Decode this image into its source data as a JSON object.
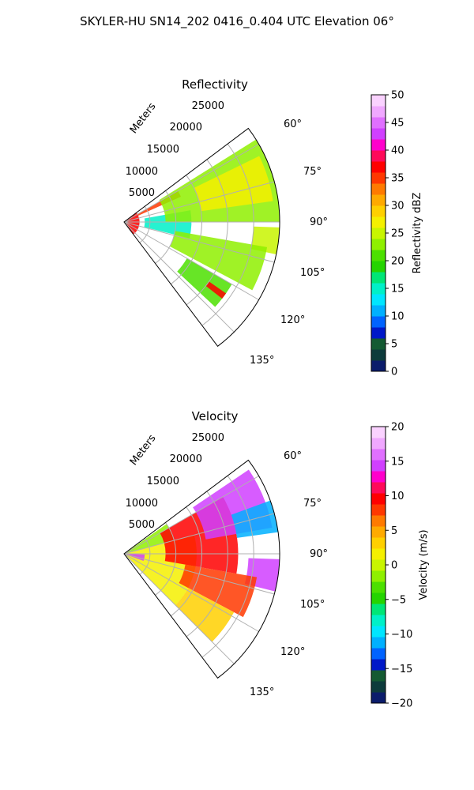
{
  "suptitle": "SKYLER-HU  SN14_202  0416_0.404 UTC Elevation 06°",
  "chart_data": [
    {
      "type": "heatmap",
      "subtype": "polar-sector",
      "title": "Reflectivity",
      "radial_label": "Meters",
      "radial_ticks": [
        "5000",
        "10000",
        "15000",
        "20000",
        "25000"
      ],
      "angle_ticks": [
        "60°",
        "75°",
        "90°",
        "105°",
        "120°",
        "135°"
      ],
      "theta_range_deg": [
        53,
        143
      ],
      "r_max": 30000,
      "grid": true,
      "colorbar": {
        "label": "Reflectivity dBZ",
        "min": 0,
        "max": 50,
        "step": 2.5,
        "ticks": [
          "0",
          "5",
          "10",
          "15",
          "20",
          "25",
          "30",
          "35",
          "40",
          "45",
          "50"
        ],
        "colors": [
          "#0b1c6b",
          "#0d3b3b",
          "#145a32",
          "#0018c8",
          "#0063ff",
          "#00b0ff",
          "#00e6ff",
          "#00f0c8",
          "#00e676",
          "#25d400",
          "#4ce000",
          "#8ff000",
          "#c8f500",
          "#f5f000",
          "#ffd000",
          "#ffaa00",
          "#ff7a00",
          "#ff3800",
          "#ff0000",
          "#ff0a5a",
          "#ff00cc",
          "#d040ff",
          "#e070ff",
          "#f0a8ff",
          "#fad2ff"
        ]
      },
      "zones": [
        {
          "r": [
            0,
            3000
          ],
          "theta": [
            53,
            143
          ],
          "value": 37
        },
        {
          "r": [
            3000,
            12000
          ],
          "theta": [
            60,
            66
          ],
          "value": 35
        },
        {
          "r": [
            4000,
            13000
          ],
          "theta": [
            80,
            104
          ],
          "value": 15
        },
        {
          "r": [
            8000,
            30000
          ],
          "theta": [
            58,
            90
          ],
          "value": 22
        },
        {
          "r": [
            15000,
            29000
          ],
          "theta": [
            64,
            82
          ],
          "value": 26
        },
        {
          "r": [
            25000,
            30000
          ],
          "theta": [
            92,
            102
          ],
          "value": 24
        },
        {
          "r": [
            10000,
            28000
          ],
          "theta": [
            100,
            118
          ],
          "value": 23
        },
        {
          "r": [
            14000,
            24000
          ],
          "theta": [
            120,
            133
          ],
          "value": 21
        },
        {
          "r": [
            20000,
            24000
          ],
          "theta": [
            125,
            128
          ],
          "value": 36
        }
      ]
    },
    {
      "type": "heatmap",
      "subtype": "polar-sector",
      "title": "Velocity",
      "radial_label": "Meters",
      "radial_ticks": [
        "5000",
        "10000",
        "15000",
        "20000",
        "25000"
      ],
      "angle_ticks": [
        "60°",
        "75°",
        "90°",
        "105°",
        "120°",
        "135°"
      ],
      "theta_range_deg": [
        53,
        143
      ],
      "r_max": 30000,
      "grid": true,
      "colorbar": {
        "label": "Velocity (m/s)",
        "min": -20,
        "max": 20,
        "step": 1.6,
        "ticks": [
          "−20",
          "−15",
          "−10",
          "−5",
          "0",
          "5",
          "10",
          "15",
          "20"
        ],
        "colors": [
          "#0b1c6b",
          "#0d3b3b",
          "#145a32",
          "#0018c8",
          "#0063ff",
          "#00b0ff",
          "#00e6ff",
          "#00f0c8",
          "#00e676",
          "#25d400",
          "#4ce000",
          "#8ff000",
          "#c8f500",
          "#f5f000",
          "#ffd000",
          "#ffaa00",
          "#ff7a00",
          "#ff3800",
          "#ff0000",
          "#ff0a5a",
          "#ff00cc",
          "#d040ff",
          "#e070ff",
          "#f0a8ff",
          "#fad2ff"
        ]
      },
      "zones": [
        {
          "r": [
            0,
            10000
          ],
          "theta": [
            55,
            75
          ],
          "value": -2
        },
        {
          "r": [
            0,
            14000
          ],
          "theta": [
            75,
            135
          ],
          "value": 1
        },
        {
          "r": [
            8000,
            22000
          ],
          "theta": [
            60,
            100
          ],
          "value": 9
        },
        {
          "r": [
            16000,
            29000
          ],
          "theta": [
            56,
            80
          ],
          "value": 15
        },
        {
          "r": [
            22000,
            30000
          ],
          "theta": [
            70,
            82
          ],
          "value": -12
        },
        {
          "r": [
            24000,
            30000
          ],
          "theta": [
            92,
            104
          ],
          "value": 15
        },
        {
          "r": [
            12000,
            26000
          ],
          "theta": [
            100,
            118
          ],
          "value": 8
        },
        {
          "r": [
            14000,
            24000
          ],
          "theta": [
            118,
            135
          ],
          "value": 3
        },
        {
          "r": [
            0,
            4000
          ],
          "theta": [
            92,
            110
          ],
          "value": 15
        }
      ]
    }
  ]
}
